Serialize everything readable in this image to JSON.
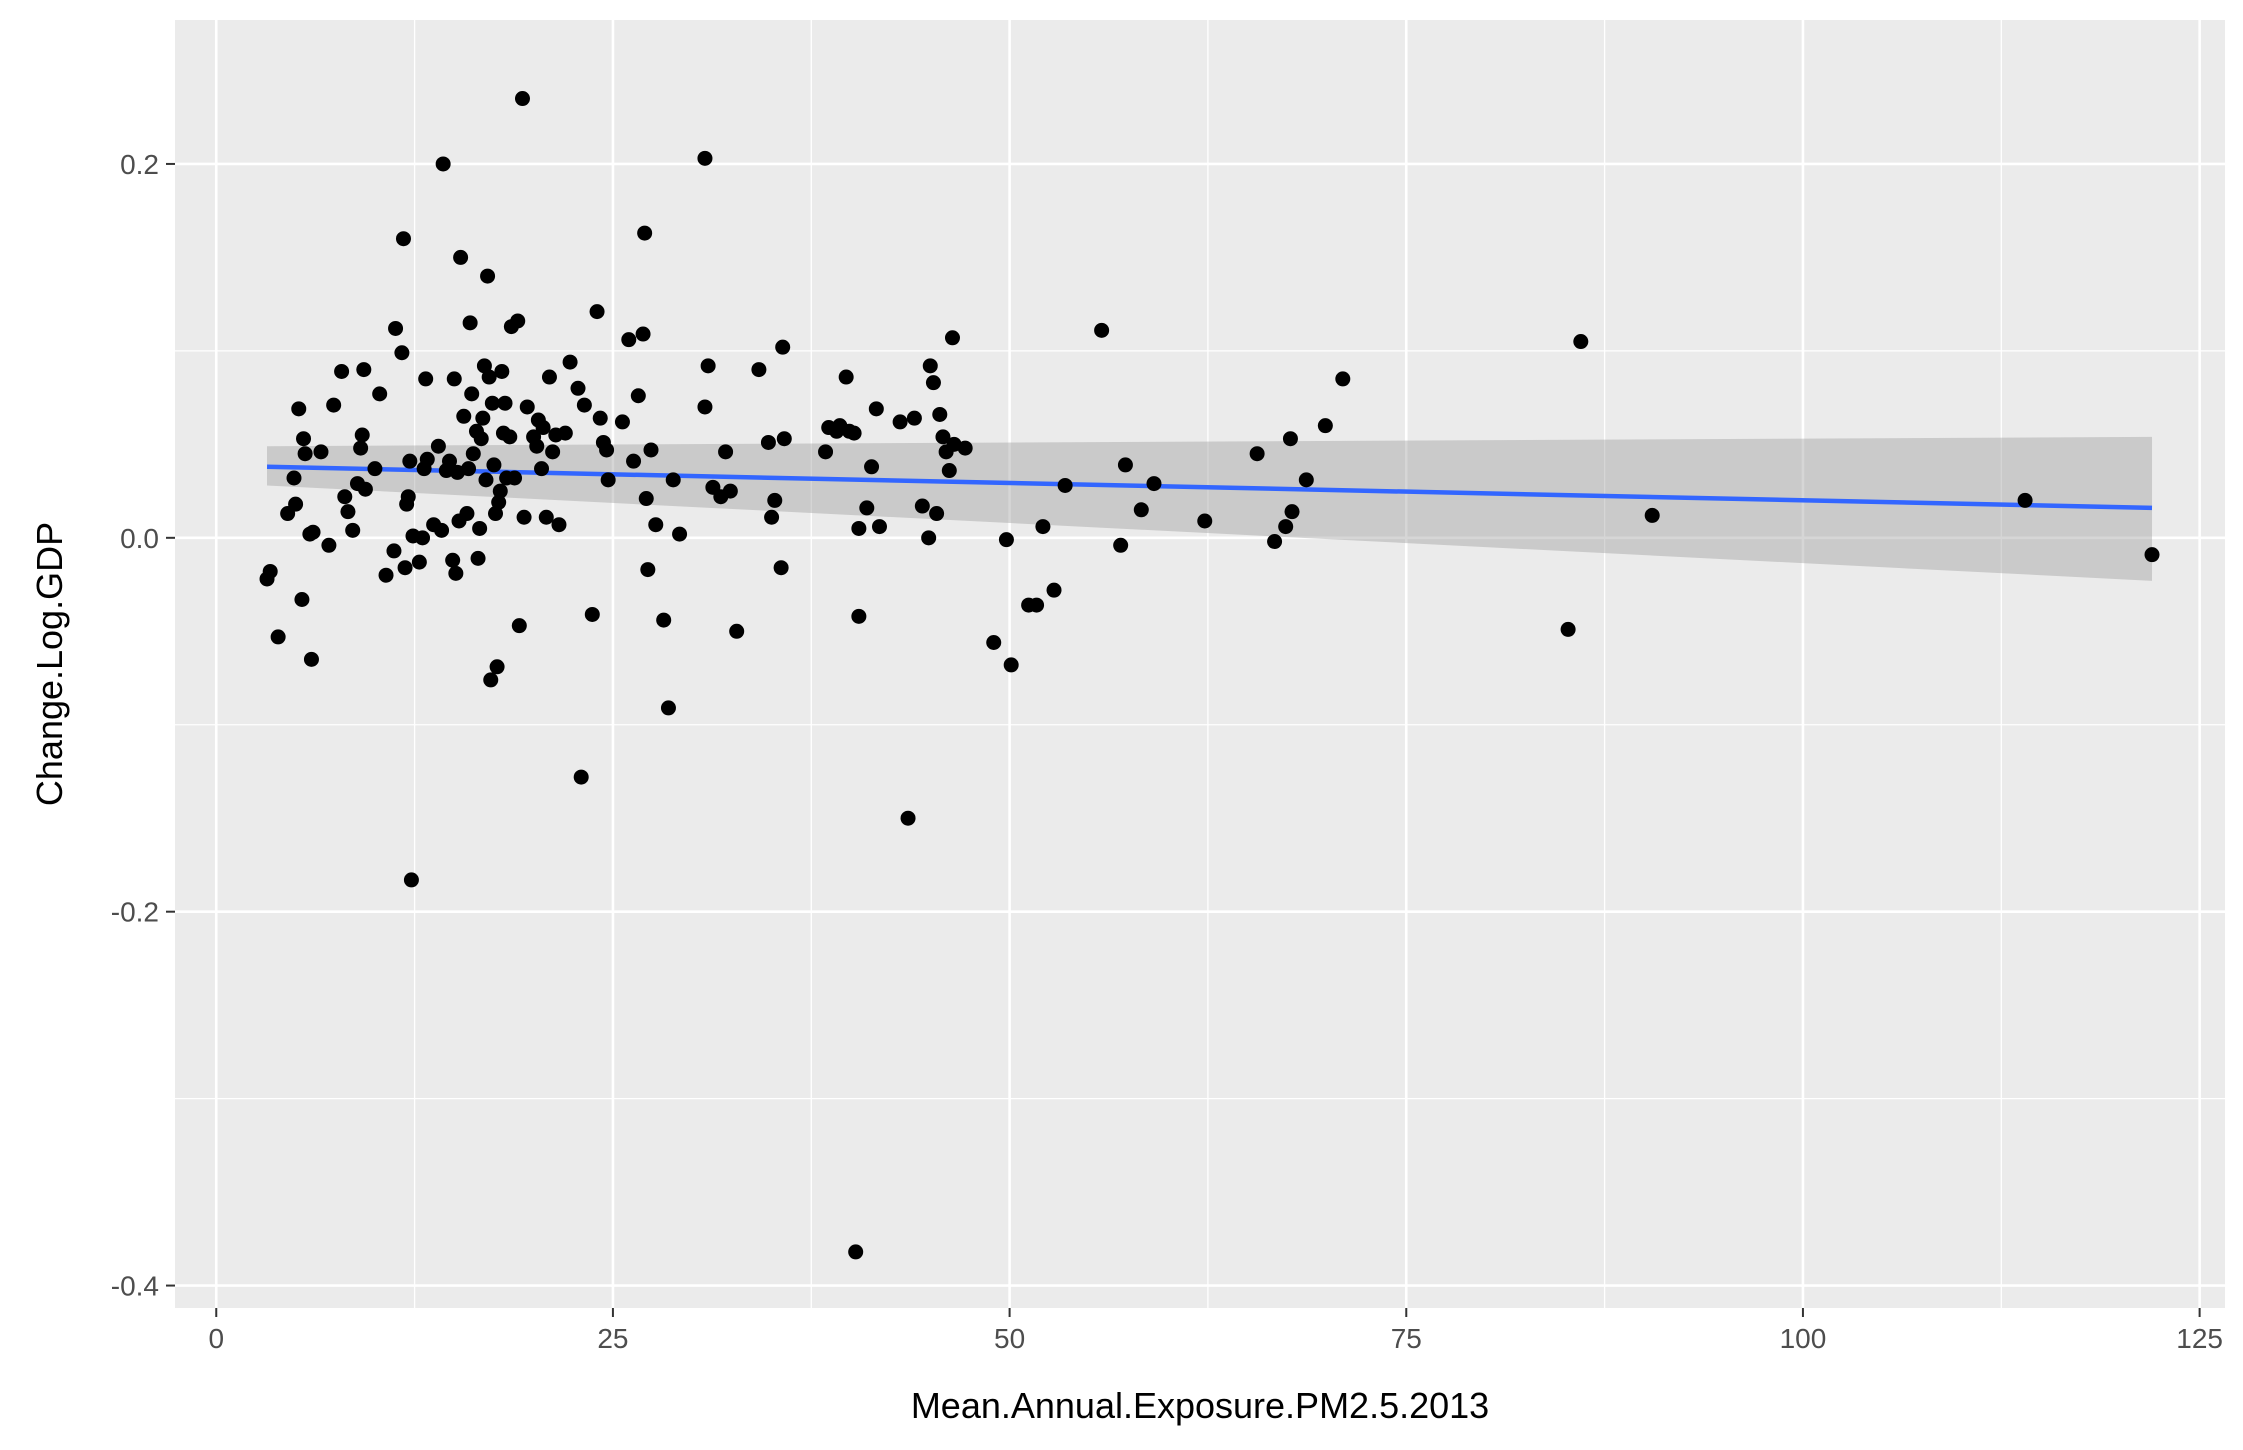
{
  "chart_data": {
    "type": "scatter",
    "title": "",
    "xlabel": "Mean.Annual.Exposure.PM2.5.2013",
    "ylabel": "Change.Log.GDP",
    "xlim": [
      -2.6,
      126.6
    ],
    "ylim": [
      -0.412,
      0.277
    ],
    "x_ticks": [
      0,
      25,
      50,
      75,
      100,
      125
    ],
    "x_tick_labels": [
      "0",
      "25",
      "50",
      "75",
      "100",
      "125"
    ],
    "y_ticks": [
      -0.4,
      -0.2,
      0.0,
      0.2
    ],
    "y_tick_labels": [
      "-0.4",
      "-0.2",
      "0.0",
      "0.2"
    ],
    "grid": true,
    "legend": "none",
    "colors": {
      "panel": "#ebebeb",
      "grid": "#ffffff",
      "points": "#000000",
      "fit_line": "#3366ff",
      "confidence_band": "#999999"
    },
    "points": [
      [
        3.2,
        -0.022
      ],
      [
        3.4,
        -0.018
      ],
      [
        3.9,
        -0.053
      ],
      [
        4.5,
        0.013
      ],
      [
        4.9,
        0.032
      ],
      [
        5.0,
        0.018
      ],
      [
        5.2,
        0.069
      ],
      [
        5.4,
        -0.033
      ],
      [
        5.5,
        0.053
      ],
      [
        5.6,
        0.045
      ],
      [
        5.9,
        0.002
      ],
      [
        6.0,
        -0.065
      ],
      [
        6.1,
        0.003
      ],
      [
        6.6,
        0.046
      ],
      [
        7.1,
        -0.004
      ],
      [
        7.4,
        0.071
      ],
      [
        7.9,
        0.089
      ],
      [
        8.1,
        0.022
      ],
      [
        8.3,
        0.014
      ],
      [
        8.6,
        0.004
      ],
      [
        8.9,
        0.029
      ],
      [
        9.1,
        0.048
      ],
      [
        9.2,
        0.055
      ],
      [
        9.3,
        0.09
      ],
      [
        9.4,
        0.026
      ],
      [
        10.0,
        0.037
      ],
      [
        10.3,
        0.077
      ],
      [
        10.7,
        -0.02
      ],
      [
        11.2,
        -0.007
      ],
      [
        11.3,
        0.112
      ],
      [
        11.7,
        0.099
      ],
      [
        11.8,
        0.16
      ],
      [
        11.9,
        -0.016
      ],
      [
        12.0,
        0.018
      ],
      [
        12.1,
        0.022
      ],
      [
        12.2,
        0.041
      ],
      [
        12.3,
        -0.183
      ],
      [
        12.4,
        0.001
      ],
      [
        12.8,
        -0.013
      ],
      [
        13.0,
        0.0
      ],
      [
        13.1,
        0.037
      ],
      [
        13.2,
        0.085
      ],
      [
        13.3,
        0.042
      ],
      [
        13.7,
        0.007
      ],
      [
        14.0,
        0.049
      ],
      [
        14.2,
        0.004
      ],
      [
        14.3,
        0.2
      ],
      [
        14.5,
        0.036
      ],
      [
        14.7,
        0.041
      ],
      [
        14.9,
        -0.012
      ],
      [
        15.0,
        0.085
      ],
      [
        15.1,
        -0.019
      ],
      [
        15.2,
        0.035
      ],
      [
        15.3,
        0.009
      ],
      [
        15.4,
        0.15
      ],
      [
        15.6,
        0.065
      ],
      [
        15.8,
        0.013
      ],
      [
        15.9,
        0.037
      ],
      [
        16.0,
        0.115
      ],
      [
        16.1,
        0.077
      ],
      [
        16.2,
        0.045
      ],
      [
        16.4,
        0.057
      ],
      [
        16.5,
        -0.011
      ],
      [
        16.6,
        0.005
      ],
      [
        16.7,
        0.053
      ],
      [
        16.8,
        0.064
      ],
      [
        16.9,
        0.092
      ],
      [
        17.0,
        0.031
      ],
      [
        17.1,
        0.14
      ],
      [
        17.2,
        0.086
      ],
      [
        17.3,
        -0.076
      ],
      [
        17.4,
        0.072
      ],
      [
        17.5,
        0.039
      ],
      [
        17.6,
        0.013
      ],
      [
        17.7,
        -0.069
      ],
      [
        17.8,
        0.019
      ],
      [
        17.9,
        0.025
      ],
      [
        18.0,
        0.089
      ],
      [
        18.1,
        0.056
      ],
      [
        18.2,
        0.072
      ],
      [
        18.3,
        0.032
      ],
      [
        18.5,
        0.054
      ],
      [
        18.6,
        0.113
      ],
      [
        18.8,
        0.032
      ],
      [
        19.0,
        0.116
      ],
      [
        19.1,
        -0.047
      ],
      [
        19.3,
        0.235
      ],
      [
        19.4,
        0.011
      ],
      [
        19.6,
        0.07
      ],
      [
        20.0,
        0.054
      ],
      [
        20.2,
        0.049
      ],
      [
        20.3,
        0.063
      ],
      [
        20.5,
        0.037
      ],
      [
        20.6,
        0.059
      ],
      [
        20.8,
        0.011
      ],
      [
        21.0,
        0.086
      ],
      [
        21.2,
        0.046
      ],
      [
        21.4,
        0.055
      ],
      [
        21.6,
        0.007
      ],
      [
        22.0,
        0.056
      ],
      [
        22.3,
        0.094
      ],
      [
        22.8,
        0.08
      ],
      [
        23.0,
        -0.128
      ],
      [
        23.2,
        0.071
      ],
      [
        23.7,
        -0.041
      ],
      [
        24.0,
        0.121
      ],
      [
        24.2,
        0.064
      ],
      [
        24.4,
        0.051
      ],
      [
        24.6,
        0.047
      ],
      [
        24.7,
        0.031
      ],
      [
        25.6,
        0.062
      ],
      [
        26.0,
        0.106
      ],
      [
        26.3,
        0.041
      ],
      [
        26.6,
        0.076
      ],
      [
        26.9,
        0.109
      ],
      [
        27.0,
        0.163
      ],
      [
        27.1,
        0.021
      ],
      [
        27.2,
        -0.017
      ],
      [
        27.4,
        0.047
      ],
      [
        27.7,
        0.007
      ],
      [
        28.2,
        -0.044
      ],
      [
        28.5,
        -0.091
      ],
      [
        28.8,
        0.031
      ],
      [
        29.2,
        0.002
      ],
      [
        30.8,
        0.203
      ],
      [
        30.8,
        0.07
      ],
      [
        31.0,
        0.092
      ],
      [
        31.3,
        0.027
      ],
      [
        31.8,
        0.022
      ],
      [
        32.1,
        0.046
      ],
      [
        32.4,
        0.025
      ],
      [
        32.8,
        -0.05
      ],
      [
        34.2,
        0.09
      ],
      [
        34.8,
        0.051
      ],
      [
        35.0,
        0.011
      ],
      [
        35.2,
        0.02
      ],
      [
        35.6,
        -0.016
      ],
      [
        35.7,
        0.102
      ],
      [
        35.8,
        0.053
      ],
      [
        38.4,
        0.046
      ],
      [
        38.6,
        0.059
      ],
      [
        39.1,
        0.057
      ],
      [
        39.3,
        0.06
      ],
      [
        39.7,
        0.086
      ],
      [
        39.9,
        0.057
      ],
      [
        40.2,
        0.056
      ],
      [
        40.3,
        -0.382
      ],
      [
        40.5,
        0.005
      ],
      [
        40.5,
        -0.042
      ],
      [
        41.0,
        0.016
      ],
      [
        41.3,
        0.038
      ],
      [
        41.6,
        0.069
      ],
      [
        41.8,
        0.006
      ],
      [
        43.1,
        0.062
      ],
      [
        43.6,
        -0.15
      ],
      [
        44.0,
        0.064
      ],
      [
        44.5,
        0.017
      ],
      [
        44.9,
        0.0
      ],
      [
        45.0,
        0.092
      ],
      [
        45.2,
        0.083
      ],
      [
        45.4,
        0.013
      ],
      [
        45.6,
        0.066
      ],
      [
        45.8,
        0.054
      ],
      [
        46.0,
        0.046
      ],
      [
        46.2,
        0.036
      ],
      [
        46.4,
        0.107
      ],
      [
        46.5,
        0.05
      ],
      [
        47.2,
        0.048
      ],
      [
        49.0,
        -0.056
      ],
      [
        49.8,
        -0.001
      ],
      [
        50.1,
        -0.068
      ],
      [
        51.2,
        -0.036
      ],
      [
        51.7,
        -0.036
      ],
      [
        52.1,
        0.006
      ],
      [
        52.8,
        -0.028
      ],
      [
        53.5,
        0.028
      ],
      [
        55.8,
        0.111
      ],
      [
        57.0,
        -0.004
      ],
      [
        57.3,
        0.039
      ],
      [
        58.3,
        0.015
      ],
      [
        59.1,
        0.029
      ],
      [
        62.3,
        0.009
      ],
      [
        65.6,
        0.045
      ],
      [
        66.7,
        -0.002
      ],
      [
        67.4,
        0.006
      ],
      [
        67.7,
        0.053
      ],
      [
        67.8,
        0.014
      ],
      [
        68.7,
        0.031
      ],
      [
        69.9,
        0.06
      ],
      [
        71.0,
        0.085
      ],
      [
        85.2,
        -0.049
      ],
      [
        86.0,
        0.105
      ],
      [
        90.5,
        0.012
      ],
      [
        114.0,
        0.02
      ],
      [
        122.0,
        -0.009
      ]
    ],
    "fit": {
      "method": "lm",
      "x_range": [
        3.2,
        122.0
      ],
      "y_at_x_min": 0.038,
      "y_at_x_max": 0.016,
      "band_lower_at_x_min": 0.028,
      "band_upper_at_x_min": 0.049,
      "band_lower_at_x_max": -0.023,
      "band_upper_at_x_max": 0.054
    }
  }
}
